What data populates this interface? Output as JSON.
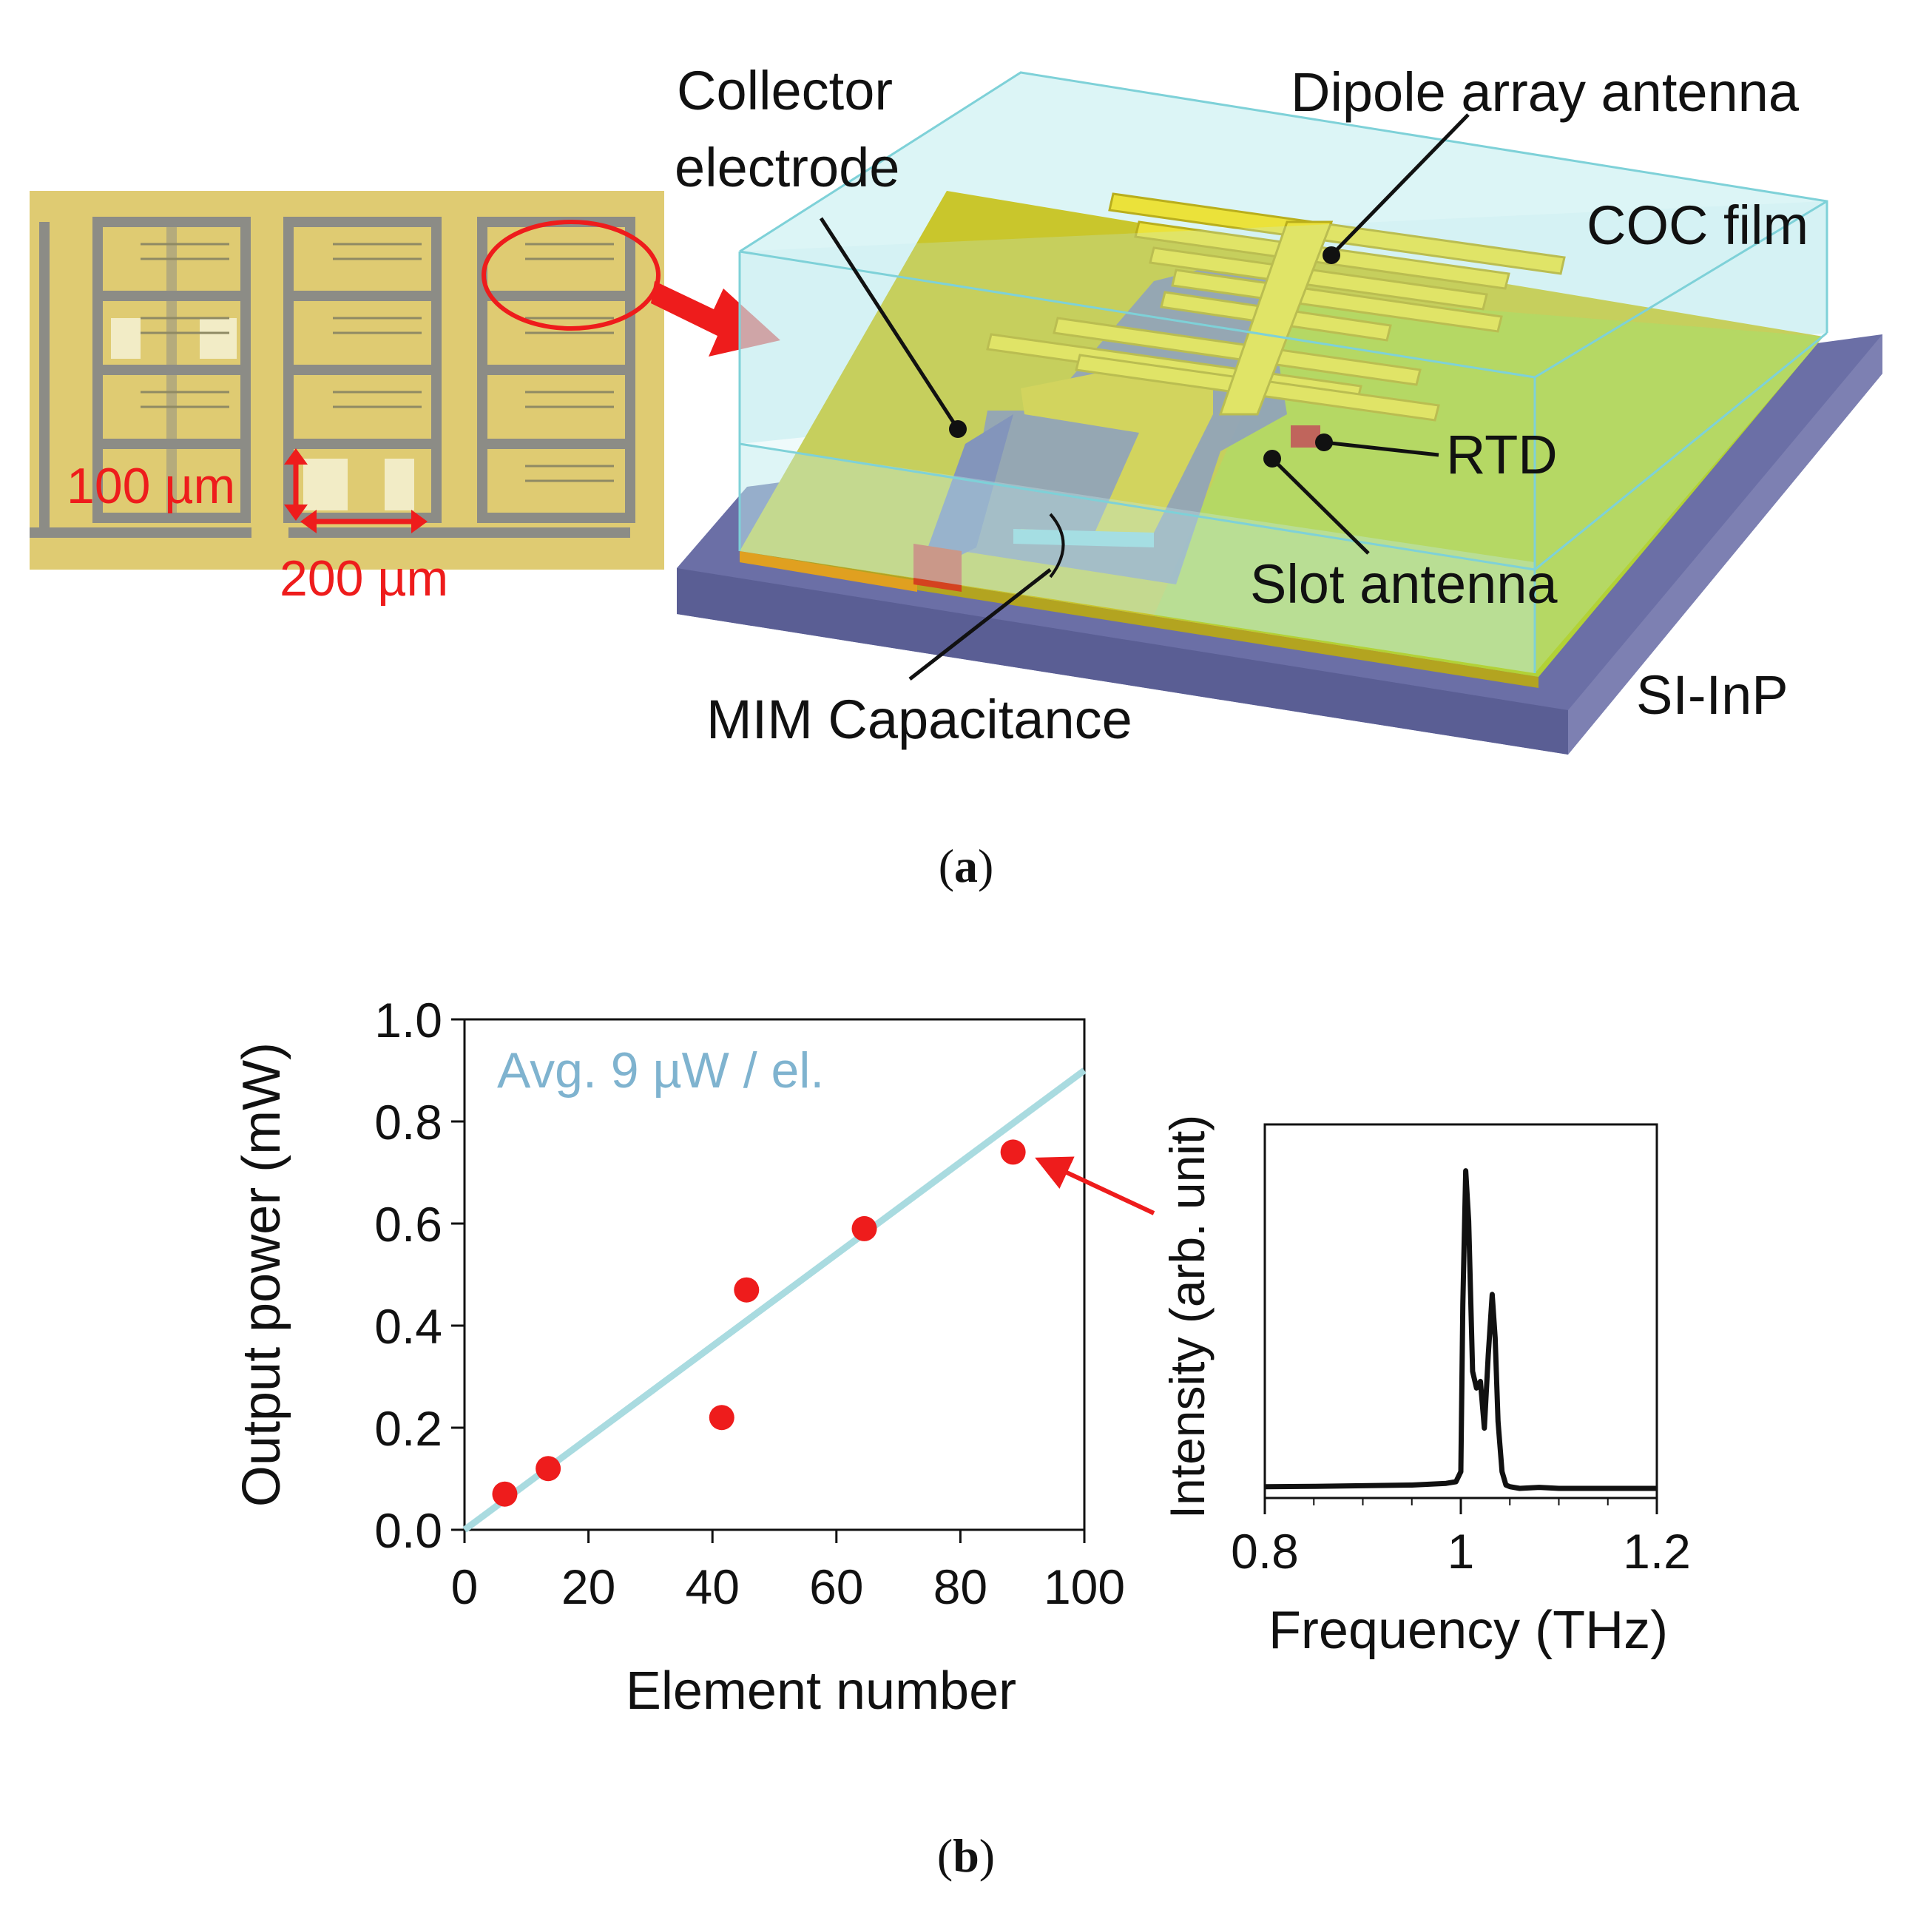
{
  "panel_a": {
    "caption_letter": "a",
    "micrograph": {
      "scale_100": "100 µm",
      "scale_200": "200 µm"
    },
    "labels": {
      "collector_1": "Collector",
      "collector_2": "electrode",
      "dipole": "Dipole array antenna",
      "coc": "COC film",
      "rtd": "RTD",
      "slot": "Slot antenna",
      "mim": "MIM Capacitance",
      "sub": "SI-InP"
    },
    "colors": {
      "coc_film": "#aee6ea",
      "substrate": "#6b6fa6",
      "electrode": "#c8c427",
      "antenna": "#ebe23a",
      "rtd": "#c0392b",
      "arrow": "#ee1c1c"
    }
  },
  "panel_b": {
    "caption_letter": "b",
    "chart_data": [
      {
        "type": "scatter",
        "xlabel": "Element number",
        "ylabel": "Output power (mW)",
        "xlim": [
          0,
          100
        ],
        "ylim": [
          0.0,
          1.0
        ],
        "xticks": [
          "0",
          "20",
          "40",
          "60",
          "80",
          "100"
        ],
        "yticks": [
          "0.0",
          "0.2",
          "0.4",
          "0.6",
          "0.8",
          "1.0"
        ],
        "annotation": "Avg. 9 µW / el.",
        "series": [
          {
            "points": [
              {
                "x": 6.5,
                "y": 0.07
              },
              {
                "x": 13.5,
                "y": 0.12
              },
              {
                "x": 41.5,
                "y": 0.22
              },
              {
                "x": 45.5,
                "y": 0.47
              },
              {
                "x": 64.5,
                "y": 0.59
              },
              {
                "x": 88.5,
                "y": 0.74
              }
            ],
            "color": "#ee1c1c"
          }
        ],
        "fit_line": {
          "points": [
            [
              0,
              0.0
            ],
            [
              100,
              0.9
            ]
          ],
          "color": "#a9dbe0"
        },
        "grid": false
      },
      {
        "type": "line",
        "xlabel": "Frequency (THz)",
        "ylabel": "Intensity (arb. unit)",
        "xlim": [
          0.8,
          1.2
        ],
        "xticks": [
          "0.8",
          "1",
          "1.2"
        ],
        "series": [
          {
            "color": "#111111",
            "x": [
              0.8,
              0.85,
              0.9,
              0.95,
              0.985,
              0.995,
              1.0,
              1.002,
              1.005,
              1.008,
              1.012,
              1.016,
              1.02,
              1.024,
              1.028,
              1.032,
              1.035,
              1.038,
              1.042,
              1.046,
              1.05,
              1.06,
              1.08,
              1.1,
              1.15,
              1.2
            ],
            "y": [
              0.005,
              0.006,
              0.008,
              0.01,
              0.015,
              0.02,
              0.05,
              0.55,
              0.95,
              0.8,
              0.35,
              0.3,
              0.32,
              0.18,
              0.4,
              0.58,
              0.45,
              0.2,
              0.05,
              0.01,
              0.005,
              0.0,
              0.003,
              0.0,
              0.0,
              0.0
            ]
          }
        ],
        "grid": false
      }
    ]
  }
}
